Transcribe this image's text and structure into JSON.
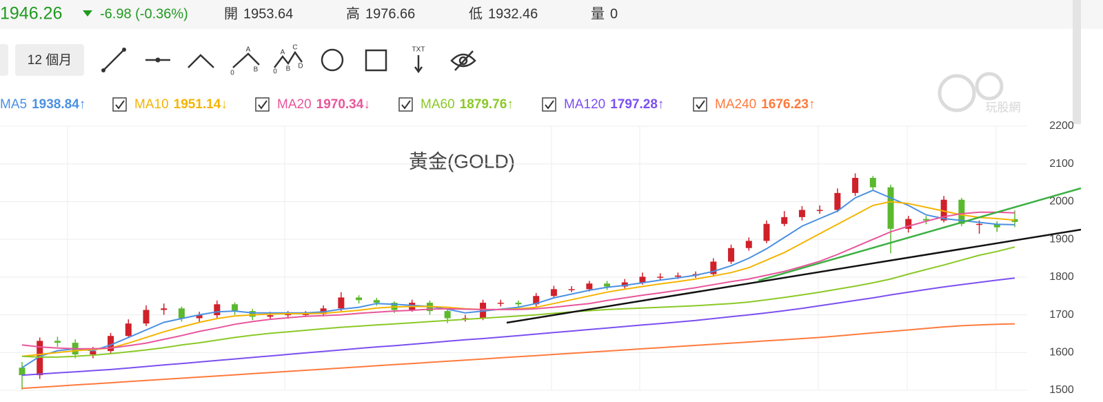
{
  "header": {
    "price": "1946.26",
    "change": "-6.98 (-0.36%)",
    "stats": [
      {
        "label": "開",
        "value": "1953.64"
      },
      {
        "label": "高",
        "value": "1976.66"
      },
      {
        "label": "低",
        "value": "1932.46"
      },
      {
        "label": "量",
        "value": "0"
      }
    ]
  },
  "toolbar": {
    "period": "12 個月",
    "abc_labels": [
      "A",
      "0",
      "B"
    ],
    "abcd_labels": [
      "A",
      "C",
      "0",
      "B",
      "D"
    ],
    "text_tool": "TXT"
  },
  "watermark": "玩股網",
  "chart_data": {
    "type": "candlestick",
    "title": "黃金(GOLD)",
    "ylim": [
      1500,
      2200
    ],
    "yticks": [
      1500,
      1600,
      1700,
      1800,
      1900,
      2000,
      2100,
      2200
    ],
    "grid": true,
    "up_color": "#d0202a",
    "down_color": "#5cb82e",
    "open": [
      1560,
      1540,
      1631,
      1626,
      1595,
      1604,
      1644,
      1677,
      1713,
      1717,
      1691,
      1699,
      1728,
      1710,
      1695,
      1699,
      1702,
      1702,
      1717,
      1746,
      1739,
      1732,
      1713,
      1732,
      1710,
      1691,
      1691,
      1732,
      1732,
      1728,
      1750,
      1768,
      1768,
      1783,
      1775,
      1786,
      1801,
      1801,
      1804,
      1808,
      1841,
      1877,
      1896,
      1941,
      1959,
      1978,
      1978,
      2023,
      2063,
      2038,
      1928,
      1954,
      1950,
      2005,
      1941,
      1941,
      1953.64
    ],
    "high": [
      1575,
      1640,
      1642,
      1635,
      1615,
      1652,
      1688,
      1725,
      1730,
      1722,
      1708,
      1738,
      1733,
      1716,
      1708,
      1710,
      1710,
      1725,
      1760,
      1752,
      1745,
      1736,
      1740,
      1738,
      1715,
      1700,
      1740,
      1740,
      1738,
      1758,
      1777,
      1776,
      1790,
      1790,
      1795,
      1812,
      1810,
      1812,
      1815,
      1850,
      1886,
      1905,
      1950,
      1975,
      1988,
      1990,
      2035,
      2075,
      2068,
      2045,
      1962,
      1962,
      2015,
      2010,
      1950,
      1948,
      1976.66
    ],
    "low": [
      1502,
      1530,
      1615,
      1585,
      1585,
      1598,
      1638,
      1670,
      1700,
      1682,
      1680,
      1692,
      1700,
      1686,
      1688,
      1690,
      1694,
      1696,
      1710,
      1730,
      1724,
      1705,
      1708,
      1700,
      1678,
      1682,
      1686,
      1722,
      1720,
      1722,
      1744,
      1760,
      1762,
      1766,
      1770,
      1780,
      1793,
      1795,
      1798,
      1802,
      1835,
      1870,
      1890,
      1935,
      1950,
      1968,
      1972,
      2015,
      2030,
      1863,
      1918,
      1940,
      1945,
      1935,
      1915,
      1920,
      1932.46
    ],
    "close": [
      1540,
      1631,
      1626,
      1595,
      1604,
      1644,
      1677,
      1713,
      1717,
      1691,
      1699,
      1728,
      1710,
      1695,
      1699,
      1702,
      1702,
      1717,
      1746,
      1739,
      1732,
      1713,
      1732,
      1710,
      1691,
      1691,
      1732,
      1732,
      1728,
      1750,
      1768,
      1768,
      1783,
      1775,
      1786,
      1801,
      1801,
      1804,
      1808,
      1841,
      1877,
      1896,
      1941,
      1959,
      1978,
      1978,
      2023,
      2063,
      2038,
      1928,
      1954,
      1950,
      2005,
      1941,
      1941,
      1932,
      1946.26
    ],
    "series": [
      {
        "name": "MA5",
        "legend_label": "1938.84↑",
        "color": "#4a90e2",
        "values": [
          1560,
          1590,
          1605,
          1610,
          1605,
          1620,
          1640,
          1660,
          1680,
          1690,
          1700,
          1708,
          1710,
          1705,
          1705,
          1705,
          1705,
          1708,
          1715,
          1720,
          1730,
          1728,
          1725,
          1722,
          1715,
          1705,
          1710,
          1715,
          1720,
          1730,
          1745,
          1755,
          1765,
          1773,
          1778,
          1785,
          1792,
          1798,
          1805,
          1815,
          1830,
          1850,
          1875,
          1905,
          1935,
          1955,
          1975,
          2010,
          2030,
          2010,
          1990,
          1965,
          1955,
          1950,
          1945,
          1940,
          1938.84
        ]
      },
      {
        "name": "MA10",
        "legend_label": "1951.14↓",
        "color": "#f5b400",
        "values": [
          1590,
          1595,
          1600,
          1605,
          1608,
          1612,
          1625,
          1640,
          1655,
          1668,
          1680,
          1690,
          1697,
          1700,
          1702,
          1703,
          1703,
          1704,
          1708,
          1712,
          1718,
          1721,
          1722,
          1722,
          1720,
          1716,
          1714,
          1714,
          1716,
          1720,
          1730,
          1740,
          1750,
          1760,
          1768,
          1775,
          1782,
          1788,
          1795,
          1803,
          1812,
          1825,
          1845,
          1865,
          1890,
          1915,
          1940,
          1965,
          1990,
          2000,
          1995,
          1985,
          1975,
          1965,
          1958,
          1955,
          1951.14
        ]
      },
      {
        "name": "MA20",
        "legend_label": "1970.34↓",
        "color": "#e8559b",
        "values": [
          1620,
          1615,
          1612,
          1610,
          1610,
          1612,
          1618,
          1625,
          1635,
          1645,
          1656,
          1665,
          1675,
          1682,
          1688,
          1692,
          1696,
          1698,
          1700,
          1704,
          1707,
          1710,
          1712,
          1715,
          1716,
          1715,
          1714,
          1714,
          1714,
          1716,
          1720,
          1725,
          1730,
          1738,
          1745,
          1752,
          1758,
          1765,
          1772,
          1780,
          1788,
          1795,
          1805,
          1815,
          1828,
          1842,
          1860,
          1880,
          1900,
          1920,
          1935,
          1948,
          1960,
          1968,
          1972,
          1972,
          1970.34
        ]
      },
      {
        "name": "MA60",
        "legend_label": "1879.76↑",
        "color": "#8ac926",
        "values": [
          1590,
          1588,
          1588,
          1590,
          1593,
          1597,
          1602,
          1607,
          1613,
          1620,
          1626,
          1633,
          1640,
          1646,
          1651,
          1655,
          1659,
          1663,
          1667,
          1670,
          1673,
          1676,
          1679,
          1682,
          1685,
          1688,
          1691,
          1694,
          1697,
          1700,
          1704,
          1708,
          1711,
          1714,
          1716,
          1718,
          1720,
          1722,
          1724,
          1727,
          1730,
          1734,
          1740,
          1746,
          1753,
          1760,
          1768,
          1776,
          1785,
          1795,
          1808,
          1820,
          1832,
          1845,
          1858,
          1868,
          1879.76
        ]
      },
      {
        "name": "MA120",
        "legend_label": "1797.28↑",
        "color": "#7b4ff0",
        "values": [
          1540,
          1543,
          1546,
          1549,
          1552,
          1555,
          1559,
          1563,
          1567,
          1571,
          1575,
          1579,
          1583,
          1587,
          1591,
          1595,
          1599,
          1603,
          1607,
          1611,
          1615,
          1618,
          1622,
          1626,
          1630,
          1634,
          1637,
          1641,
          1645,
          1649,
          1653,
          1657,
          1661,
          1665,
          1669,
          1673,
          1677,
          1681,
          1685,
          1690,
          1695,
          1700,
          1705,
          1711,
          1717,
          1724,
          1731,
          1738,
          1745,
          1753,
          1760,
          1767,
          1774,
          1780,
          1786,
          1792,
          1797.28
        ]
      },
      {
        "name": "MA240",
        "legend_label": "1676.23↑",
        "color": "#ff7a3d",
        "values": [
          1505,
          1508,
          1511,
          1514,
          1517,
          1520,
          1523,
          1526,
          1529,
          1532,
          1535,
          1538,
          1541,
          1544,
          1547,
          1550,
          1553,
          1556,
          1559,
          1562,
          1565,
          1568,
          1571,
          1574,
          1577,
          1580,
          1583,
          1586,
          1589,
          1592,
          1595,
          1598,
          1601,
          1604,
          1607,
          1610,
          1613,
          1616,
          1619,
          1622,
          1625,
          1628,
          1631,
          1634,
          1637,
          1640,
          1644,
          1648,
          1652,
          1656,
          1660,
          1664,
          1668,
          1671,
          1673,
          1675,
          1676.23
        ]
      }
    ]
  }
}
